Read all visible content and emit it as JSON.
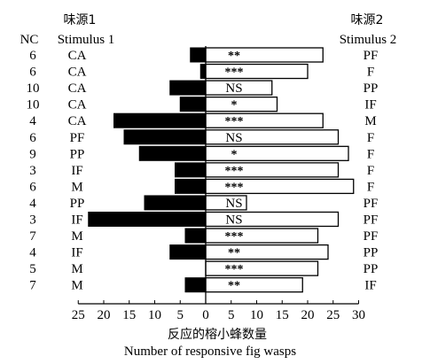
{
  "chart_data": {
    "type": "bar",
    "header": {
      "nc_label": "NC",
      "stimulus1_cn": "味源1",
      "stimulus1_en": "Stimulus 1",
      "stimulus2_cn": "味源2",
      "stimulus2_en": "Stimulus 2"
    },
    "xlabel_cn": "反应的榕小蜂数量",
    "xlabel_en": "Number of responsive fig wasps",
    "xlim_left": [
      0,
      25
    ],
    "xlim_right": [
      0,
      30
    ],
    "ticks_left": [
      "25",
      "20",
      "15",
      "10",
      "5"
    ],
    "ticks_right": [
      "0",
      "5",
      "10",
      "15",
      "20",
      "25",
      "30"
    ],
    "series": [
      {
        "name": "Stimulus 1",
        "color": "#000000"
      },
      {
        "name": "Stimulus 2",
        "color": "#ffffff"
      }
    ],
    "rows": [
      {
        "nc": "6",
        "stim1": "CA",
        "stim2": "PF",
        "left": 3,
        "right": 23,
        "sig": "**"
      },
      {
        "nc": "6",
        "stim1": "CA",
        "stim2": "F",
        "left": 1,
        "right": 20,
        "sig": "***"
      },
      {
        "nc": "10",
        "stim1": "CA",
        "stim2": "PP",
        "left": 7,
        "right": 13,
        "sig": "NS"
      },
      {
        "nc": "10",
        "stim1": "CA",
        "stim2": "IF",
        "left": 5,
        "right": 14,
        "sig": "*"
      },
      {
        "nc": "4",
        "stim1": "CA",
        "stim2": "M",
        "left": 18,
        "right": 23,
        "sig": "***"
      },
      {
        "nc": "6",
        "stim1": "PF",
        "stim2": "F",
        "left": 16,
        "right": 26,
        "sig": "NS"
      },
      {
        "nc": "9",
        "stim1": "PP",
        "stim2": "F",
        "left": 13,
        "right": 28,
        "sig": "*"
      },
      {
        "nc": "3",
        "stim1": "IF",
        "stim2": "F",
        "left": 6,
        "right": 26,
        "sig": "***"
      },
      {
        "nc": "6",
        "stim1": "M",
        "stim2": "F",
        "left": 6,
        "right": 29,
        "sig": "***"
      },
      {
        "nc": "4",
        "stim1": "PP",
        "stim2": "PF",
        "left": 12,
        "right": 8,
        "sig": "NS"
      },
      {
        "nc": "3",
        "stim1": "IF",
        "stim2": "PF",
        "left": 23,
        "right": 26,
        "sig": "NS"
      },
      {
        "nc": "7",
        "stim1": "M",
        "stim2": "PF",
        "left": 4,
        "right": 22,
        "sig": "***"
      },
      {
        "nc": "4",
        "stim1": "IF",
        "stim2": "PP",
        "left": 7,
        "right": 24,
        "sig": "**"
      },
      {
        "nc": "5",
        "stim1": "M",
        "stim2": "PP",
        "left": 0,
        "right": 22,
        "sig": "***"
      },
      {
        "nc": "7",
        "stim1": "M",
        "stim2": "IF",
        "left": 4,
        "right": 19,
        "sig": "**"
      }
    ]
  }
}
